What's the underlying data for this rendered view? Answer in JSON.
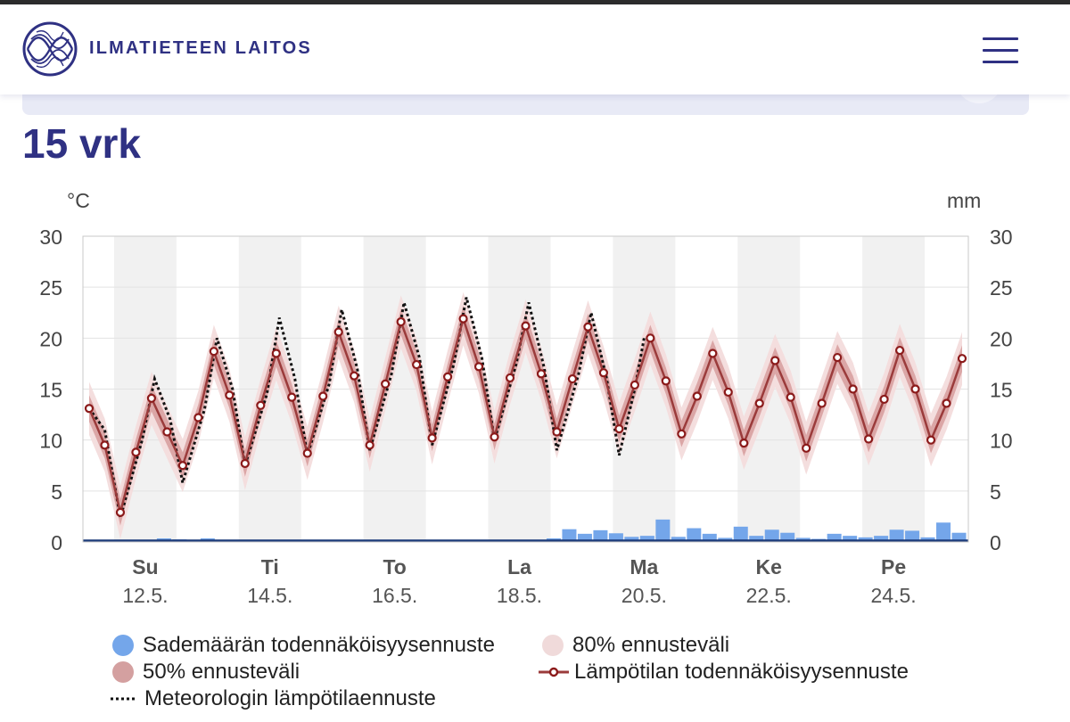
{
  "header": {
    "brand": "ILMATIETEEN LAITOS",
    "logo_icon": "fmi-logo-icon",
    "menu_icon": "hamburger-menu-icon"
  },
  "page": {
    "title": "15 vrk"
  },
  "colors": {
    "brand": "#2f3183",
    "band80": "#f3dcdc",
    "band50": "#d9a2a2",
    "temp_line": "#9b3b3b",
    "marker": "#8b1a1a",
    "precip": "#74a6ea",
    "precip_dark": "#1d3c7a",
    "shade": "#f1f1f1"
  },
  "chart_data": {
    "type": "line",
    "title": "",
    "ylabel_left": "°C",
    "ylabel_right": "mm",
    "ylim": [
      0,
      30
    ],
    "yticks": [
      0,
      5,
      10,
      15,
      20,
      25,
      30
    ],
    "xlim": [
      11,
      25.2
    ],
    "day_labels": [
      {
        "day": "Su",
        "date": "12.5."
      },
      {
        "day": "Ti",
        "date": "14.5."
      },
      {
        "day": "To",
        "date": "16.5."
      },
      {
        "day": "La",
        "date": "18.5."
      },
      {
        "day": "Ma",
        "date": "20.5."
      },
      {
        "day": "Ke",
        "date": "22.5."
      },
      {
        "day": "Pe",
        "date": "24.5."
      }
    ],
    "day_label_x": [
      12,
      14,
      16,
      18,
      20,
      22,
      24
    ],
    "shaded_days": [
      11.5,
      13.5,
      15.5,
      17.5,
      19.5,
      21.5,
      23.5
    ],
    "series": [
      {
        "name": "Lämpötilan todennäköisyysennuste",
        "x": [
          11.1,
          11.35,
          11.6,
          11.85,
          12.1,
          12.35,
          12.6,
          12.85,
          13.1,
          13.35,
          13.6,
          13.85,
          14.1,
          14.35,
          14.6,
          14.85,
          15.1,
          15.35,
          15.6,
          15.85,
          16.1,
          16.35,
          16.6,
          16.85,
          17.1,
          17.35,
          17.6,
          17.85,
          18.1,
          18.35,
          18.6,
          18.85,
          19.1,
          19.35,
          19.6,
          19.85,
          20.1,
          20.35,
          20.6,
          20.85,
          21.1,
          21.35,
          21.6,
          21.85,
          22.1,
          22.35,
          22.6,
          22.85,
          23.1,
          23.35,
          23.6,
          23.85,
          24.1,
          24.35,
          24.6,
          24.85,
          25.1
        ],
        "values": [
          13.1,
          9.5,
          2.9,
          8.8,
          14.1,
          10.8,
          7.5,
          12.2,
          18.7,
          14.4,
          7.7,
          13.4,
          18.5,
          14.2,
          8.7,
          14.3,
          20.6,
          16.3,
          9.5,
          15.5,
          21.6,
          17.4,
          10.2,
          16.2,
          21.9,
          17.2,
          10.3,
          16.1,
          21.2,
          16.5,
          10.8,
          16.0,
          21.1,
          16.6,
          11.1,
          15.4,
          20.0,
          15.8,
          10.6,
          14.3,
          18.5,
          14.7,
          9.7,
          13.6,
          17.8,
          14.2,
          9.2,
          13.6,
          18.1,
          15.0,
          10.1,
          14.0,
          18.8,
          15.0,
          10.0,
          13.6,
          18.0
        ]
      },
      {
        "name": "Meteorologin lämpötilaennuste",
        "x": [
          11.1,
          11.35,
          11.6,
          11.95,
          12.15,
          12.4,
          12.6,
          12.95,
          13.15,
          13.4,
          13.6,
          13.95,
          14.15,
          14.4,
          14.6,
          14.95,
          15.15,
          15.4,
          15.6,
          15.95,
          16.15,
          16.4,
          16.6,
          16.95,
          17.15,
          17.4,
          17.6,
          17.95,
          18.15,
          18.4,
          18.6,
          18.95,
          19.15,
          19.4,
          19.6,
          19.85,
          20.0
        ],
        "values": [
          13.1,
          11.0,
          2.4,
          10.0,
          16.0,
          12.0,
          5.8,
          13.0,
          20.0,
          15.0,
          7.5,
          14.5,
          22.0,
          16.0,
          8.5,
          15.5,
          22.8,
          17.0,
          9.0,
          16.5,
          23.5,
          18.0,
          9.5,
          17.5,
          24.0,
          18.0,
          10.0,
          17.5,
          23.5,
          17.0,
          9.0,
          16.5,
          22.5,
          16.0,
          8.5,
          15.0,
          20.0
        ]
      }
    ],
    "bands": [
      {
        "name": "80% ennusteväli",
        "halfwidth": 2.6
      },
      {
        "name": "50% ennusteväli",
        "halfwidth": 1.3
      }
    ],
    "precip": {
      "name": "Sademäärän todennäköisyysennuste",
      "x": [
        12.3,
        12.55,
        13.0,
        18.55,
        18.8,
        19.05,
        19.3,
        19.55,
        19.8,
        20.05,
        20.3,
        20.55,
        20.8,
        21.05,
        21.3,
        21.55,
        21.8,
        22.05,
        22.3,
        22.55,
        22.8,
        23.05,
        23.3,
        23.55,
        23.8,
        24.05,
        24.3,
        24.55,
        24.8,
        25.05
      ],
      "values": [
        0.35,
        0.25,
        0.35,
        0.35,
        1.25,
        0.8,
        1.15,
        0.85,
        0.5,
        0.6,
        2.2,
        0.5,
        1.35,
        0.8,
        0.4,
        1.5,
        0.6,
        1.2,
        0.9,
        0.4,
        0.3,
        0.8,
        0.6,
        0.45,
        0.6,
        1.2,
        1.1,
        0.45,
        1.9,
        0.9
      ]
    }
  },
  "legend": {
    "precip": "Sademäärän todennäköisyysennuste",
    "band80": "80% ennusteväli",
    "band50": "50% ennusteväli",
    "temp": "Lämpötilan todennäköisyysennuste",
    "meteo": "Meteorologin lämpötilaennuste"
  }
}
